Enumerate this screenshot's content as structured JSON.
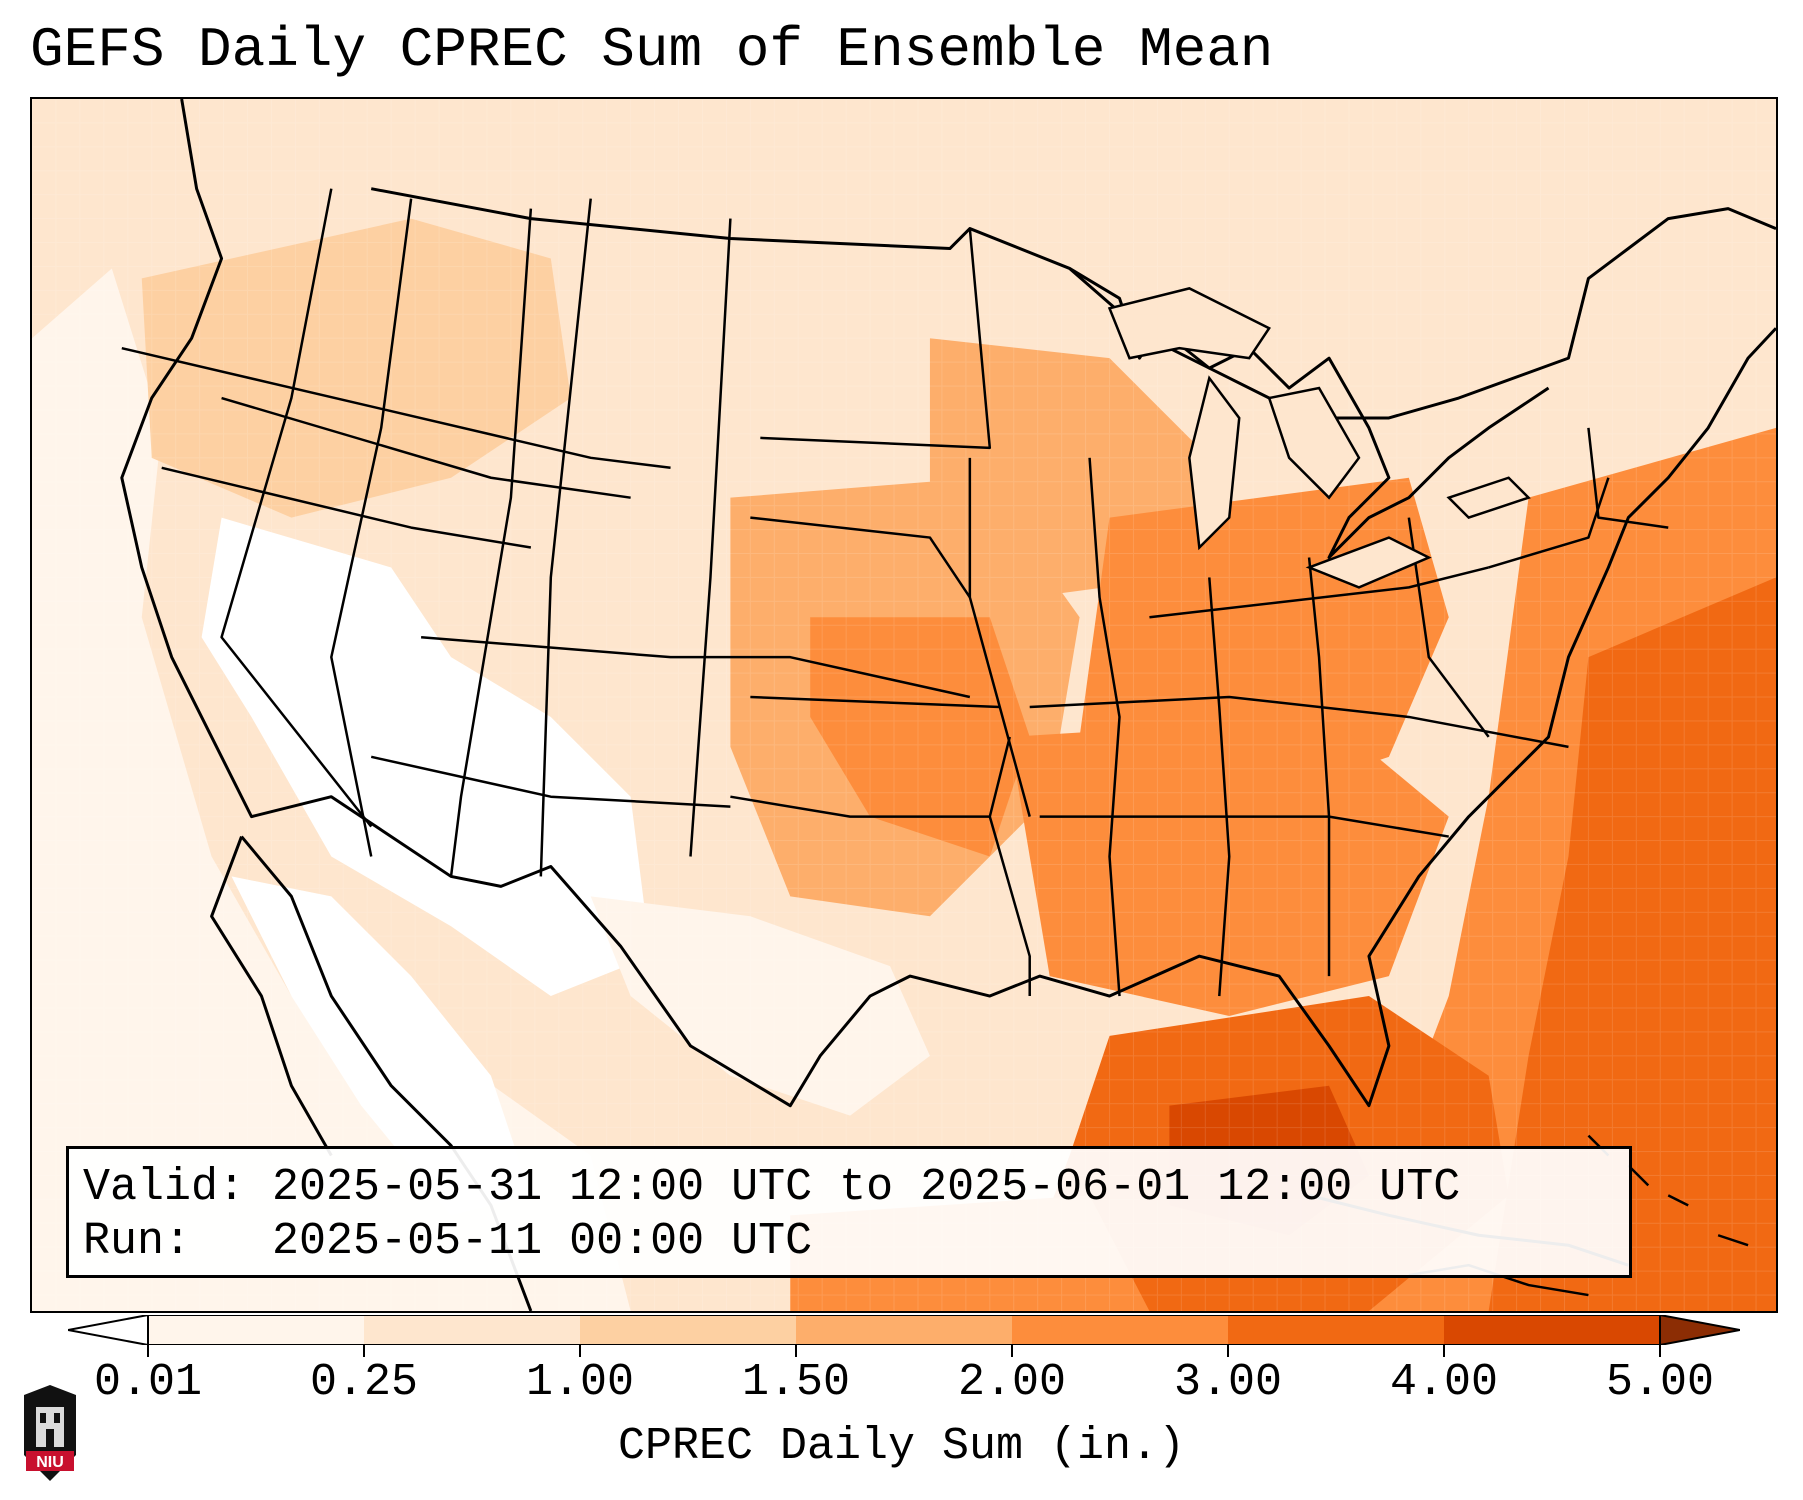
{
  "title": "GEFS Daily CPREC Sum of Ensemble Mean",
  "info": {
    "valid_label": "Valid:",
    "valid_value": "2025-05-31 12:00 UTC to 2025-06-01 12:00 UTC",
    "run_label": "Run:",
    "run_value": "2025-05-11 00:00 UTC"
  },
  "colorbar": {
    "label": "CPREC Daily Sum (in.)",
    "ticks": [
      "0.01",
      "0.25",
      "1.00",
      "1.50",
      "2.00",
      "3.00",
      "4.00",
      "5.00"
    ],
    "colors": [
      "#fff5eb",
      "#fee6ce",
      "#fdd0a2",
      "#fdae6b",
      "#fd8d3c",
      "#f16913",
      "#d94801",
      "#8c2d04"
    ],
    "under_color": "#ffffff",
    "over_color": "#8c2d04"
  },
  "logo": {
    "text": "NIU",
    "colors": {
      "red": "#c8102e",
      "black": "#111111"
    }
  },
  "map": {
    "region": "contiguous-united-states",
    "projection": "lambert-conformal",
    "regions": [
      {
        "name": "eastern-atlantic-heavy",
        "level": "3.00"
      },
      {
        "name": "gulf-of-mexico",
        "level": "3.00"
      },
      {
        "name": "ohio-valley",
        "level": "2.00"
      },
      {
        "name": "southern-plains",
        "level": "2.00"
      },
      {
        "name": "southeast",
        "level": "2.00"
      },
      {
        "name": "upper-midwest",
        "level": "1.50"
      },
      {
        "name": "northern-rockies",
        "level": "0.25"
      },
      {
        "name": "southwest-desert",
        "level": "0.01"
      },
      {
        "name": "pacific-ocean",
        "level": "0.01"
      }
    ]
  }
}
